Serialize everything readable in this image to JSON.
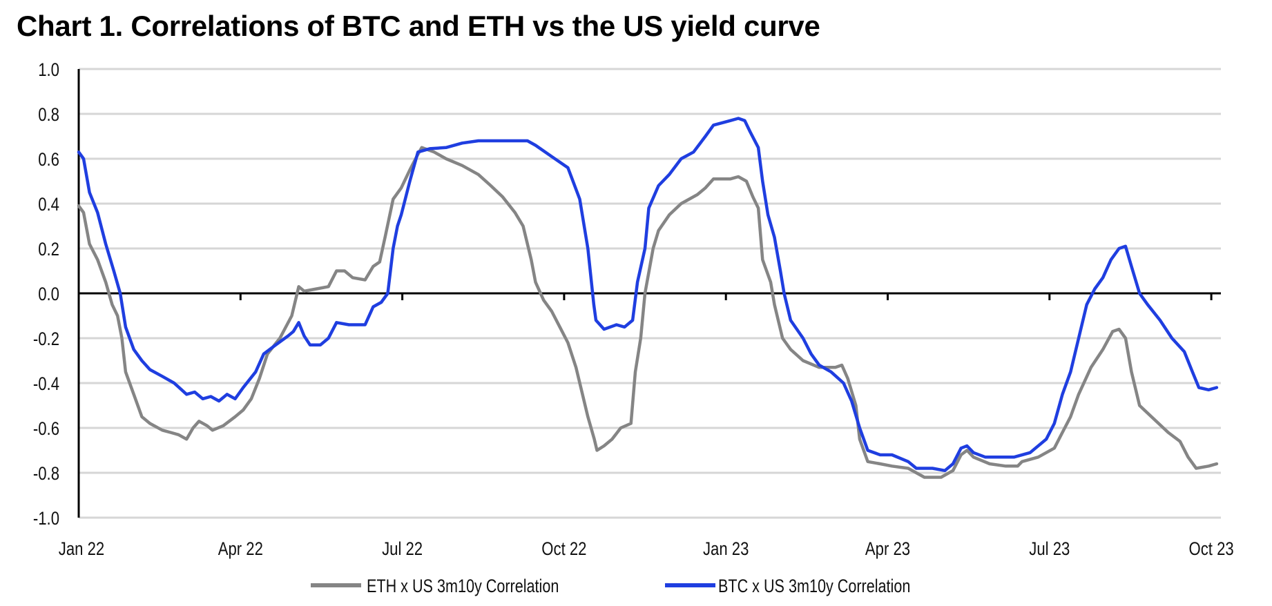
{
  "chart_data": {
    "type": "line",
    "title": "Chart 1. Correlations of BTC and ETH vs the US yield curve",
    "xlabel": "",
    "ylabel": "",
    "x_units": "months since Jan 2022",
    "xlim": [
      0,
      21.17
    ],
    "ylim": [
      -1.0,
      1.0
    ],
    "grid": true,
    "legend_position": "bottom",
    "y_ticks": [
      "1.0",
      "0.8",
      "0.6",
      "0.4",
      "0.2",
      "0.0",
      "-0.2",
      "-0.4",
      "-0.6",
      "-0.8",
      "-1.0"
    ],
    "y_tick_values": [
      1.0,
      0.8,
      0.6,
      0.4,
      0.2,
      0.0,
      -0.2,
      -0.4,
      -0.6,
      -0.8,
      -1.0
    ],
    "x_ticks": [
      "Jan 22",
      "Apr 22",
      "Jul 22",
      "Oct 22",
      "Jan 23",
      "Apr 23",
      "Jul 23",
      "Oct 23"
    ],
    "x_tick_values": [
      0,
      3,
      6,
      9,
      12,
      15,
      18,
      21
    ],
    "series": [
      {
        "name": "ETH x US 3m10y Correlation",
        "color": "#858585",
        "points": [
          [
            0,
            0.39
          ],
          [
            0.09,
            0.36
          ],
          [
            0.2,
            0.22
          ],
          [
            0.35,
            0.15
          ],
          [
            0.5,
            0.05
          ],
          [
            0.62,
            -0.05
          ],
          [
            0.72,
            -0.1
          ],
          [
            0.8,
            -0.2
          ],
          [
            0.87,
            -0.35
          ],
          [
            1.02,
            -0.45
          ],
          [
            1.17,
            -0.55
          ],
          [
            1.32,
            -0.58
          ],
          [
            1.55,
            -0.61
          ],
          [
            1.7,
            -0.62
          ],
          [
            1.85,
            -0.63
          ],
          [
            2.0,
            -0.65
          ],
          [
            2.12,
            -0.6
          ],
          [
            2.23,
            -0.57
          ],
          [
            2.38,
            -0.59
          ],
          [
            2.48,
            -0.61
          ],
          [
            2.68,
            -0.59
          ],
          [
            2.9,
            -0.55
          ],
          [
            3.05,
            -0.52
          ],
          [
            3.2,
            -0.47
          ],
          [
            3.35,
            -0.38
          ],
          [
            3.5,
            -0.27
          ],
          [
            3.73,
            -0.2
          ],
          [
            3.95,
            -0.1
          ],
          [
            4.08,
            0.03
          ],
          [
            4.18,
            0.01
          ],
          [
            4.41,
            0.02
          ],
          [
            4.63,
            0.03
          ],
          [
            4.78,
            0.1
          ],
          [
            4.93,
            0.1
          ],
          [
            5.08,
            0.07
          ],
          [
            5.31,
            0.06
          ],
          [
            5.46,
            0.12
          ],
          [
            5.58,
            0.14
          ],
          [
            5.68,
            0.25
          ],
          [
            5.83,
            0.42
          ],
          [
            5.98,
            0.47
          ],
          [
            6.14,
            0.55
          ],
          [
            6.29,
            0.62
          ],
          [
            6.36,
            0.65
          ],
          [
            6.59,
            0.63
          ],
          [
            6.81,
            0.6
          ],
          [
            7.11,
            0.57
          ],
          [
            7.41,
            0.53
          ],
          [
            7.64,
            0.48
          ],
          [
            7.86,
            0.43
          ],
          [
            8.09,
            0.36
          ],
          [
            8.24,
            0.3
          ],
          [
            8.39,
            0.15
          ],
          [
            8.47,
            0.05
          ],
          [
            8.62,
            -0.03
          ],
          [
            8.77,
            -0.08
          ],
          [
            8.92,
            -0.15
          ],
          [
            9.07,
            -0.22
          ],
          [
            9.22,
            -0.33
          ],
          [
            9.34,
            -0.45
          ],
          [
            9.44,
            -0.55
          ],
          [
            9.56,
            -0.65
          ],
          [
            9.61,
            -0.7
          ],
          [
            9.74,
            -0.68
          ],
          [
            9.89,
            -0.65
          ],
          [
            10.05,
            -0.6
          ],
          [
            10.24,
            -0.58
          ],
          [
            10.32,
            -0.35
          ],
          [
            10.42,
            -0.2
          ],
          [
            10.5,
            0.0
          ],
          [
            10.65,
            0.2
          ],
          [
            10.75,
            0.28
          ],
          [
            10.95,
            0.35
          ],
          [
            11.17,
            0.4
          ],
          [
            11.32,
            0.42
          ],
          [
            11.47,
            0.44
          ],
          [
            11.62,
            0.47
          ],
          [
            11.77,
            0.51
          ],
          [
            12.08,
            0.51
          ],
          [
            12.23,
            0.52
          ],
          [
            12.38,
            0.5
          ],
          [
            12.5,
            0.43
          ],
          [
            12.6,
            0.38
          ],
          [
            12.68,
            0.15
          ],
          [
            12.83,
            0.05
          ],
          [
            12.9,
            -0.05
          ],
          [
            13.05,
            -0.2
          ],
          [
            13.2,
            -0.25
          ],
          [
            13.43,
            -0.3
          ],
          [
            13.73,
            -0.33
          ],
          [
            14.03,
            -0.33
          ],
          [
            14.15,
            -0.32
          ],
          [
            14.26,
            -0.38
          ],
          [
            14.41,
            -0.5
          ],
          [
            14.48,
            -0.65
          ],
          [
            14.63,
            -0.75
          ],
          [
            14.86,
            -0.76
          ],
          [
            15.08,
            -0.77
          ],
          [
            15.38,
            -0.78
          ],
          [
            15.53,
            -0.8
          ],
          [
            15.68,
            -0.82
          ],
          [
            15.99,
            -0.82
          ],
          [
            16.21,
            -0.79
          ],
          [
            16.36,
            -0.72
          ],
          [
            16.47,
            -0.7
          ],
          [
            16.59,
            -0.73
          ],
          [
            16.89,
            -0.76
          ],
          [
            17.19,
            -0.77
          ],
          [
            17.41,
            -0.77
          ],
          [
            17.49,
            -0.75
          ],
          [
            17.79,
            -0.73
          ],
          [
            18.09,
            -0.69
          ],
          [
            18.24,
            -0.62
          ],
          [
            18.39,
            -0.55
          ],
          [
            18.54,
            -0.45
          ],
          [
            18.77,
            -0.33
          ],
          [
            18.99,
            -0.25
          ],
          [
            19.17,
            -0.17
          ],
          [
            19.29,
            -0.16
          ],
          [
            19.41,
            -0.2
          ],
          [
            19.52,
            -0.35
          ],
          [
            19.67,
            -0.5
          ],
          [
            19.89,
            -0.55
          ],
          [
            20.2,
            -0.62
          ],
          [
            20.42,
            -0.66
          ],
          [
            20.57,
            -0.73
          ],
          [
            20.72,
            -0.78
          ],
          [
            20.95,
            -0.77
          ],
          [
            21.1,
            -0.76
          ]
        ]
      },
      {
        "name": "BTC x US 3m10y Correlation",
        "color": "#1f3ee0",
        "points": [
          [
            0,
            0.63
          ],
          [
            0.09,
            0.6
          ],
          [
            0.2,
            0.45
          ],
          [
            0.35,
            0.36
          ],
          [
            0.5,
            0.22
          ],
          [
            0.65,
            0.1
          ],
          [
            0.77,
            0.0
          ],
          [
            0.87,
            -0.15
          ],
          [
            1.02,
            -0.25
          ],
          [
            1.17,
            -0.3
          ],
          [
            1.32,
            -0.34
          ],
          [
            1.55,
            -0.37
          ],
          [
            1.77,
            -0.4
          ],
          [
            2.0,
            -0.45
          ],
          [
            2.15,
            -0.44
          ],
          [
            2.3,
            -0.47
          ],
          [
            2.45,
            -0.46
          ],
          [
            2.6,
            -0.48
          ],
          [
            2.75,
            -0.45
          ],
          [
            2.9,
            -0.47
          ],
          [
            3.05,
            -0.42
          ],
          [
            3.28,
            -0.35
          ],
          [
            3.43,
            -0.27
          ],
          [
            3.65,
            -0.23
          ],
          [
            3.88,
            -0.19
          ],
          [
            3.98,
            -0.17
          ],
          [
            4.08,
            -0.13
          ],
          [
            4.18,
            -0.19
          ],
          [
            4.29,
            -0.23
          ],
          [
            4.48,
            -0.23
          ],
          [
            4.63,
            -0.2
          ],
          [
            4.78,
            -0.13
          ],
          [
            5.01,
            -0.14
          ],
          [
            5.31,
            -0.14
          ],
          [
            5.46,
            -0.06
          ],
          [
            5.61,
            -0.04
          ],
          [
            5.73,
            0.0
          ],
          [
            5.83,
            0.2
          ],
          [
            5.91,
            0.3
          ],
          [
            5.98,
            0.35
          ],
          [
            6.14,
            0.5
          ],
          [
            6.29,
            0.63
          ],
          [
            6.51,
            0.645
          ],
          [
            6.81,
            0.65
          ],
          [
            7.11,
            0.67
          ],
          [
            7.41,
            0.68
          ],
          [
            7.71,
            0.68
          ],
          [
            8.32,
            0.68
          ],
          [
            8.47,
            0.66
          ],
          [
            8.77,
            0.61
          ],
          [
            9.07,
            0.56
          ],
          [
            9.29,
            0.42
          ],
          [
            9.44,
            0.2
          ],
          [
            9.55,
            -0.05
          ],
          [
            9.59,
            -0.12
          ],
          [
            9.74,
            -0.16
          ],
          [
            9.97,
            -0.14
          ],
          [
            10.12,
            -0.15
          ],
          [
            10.27,
            -0.12
          ],
          [
            10.36,
            0.05
          ],
          [
            10.5,
            0.2
          ],
          [
            10.57,
            0.38
          ],
          [
            10.75,
            0.48
          ],
          [
            10.95,
            0.53
          ],
          [
            11.17,
            0.6
          ],
          [
            11.4,
            0.63
          ],
          [
            11.62,
            0.7
          ],
          [
            11.77,
            0.75
          ],
          [
            12.08,
            0.77
          ],
          [
            12.23,
            0.78
          ],
          [
            12.35,
            0.77
          ],
          [
            12.45,
            0.72
          ],
          [
            12.6,
            0.65
          ],
          [
            12.68,
            0.5
          ],
          [
            12.78,
            0.35
          ],
          [
            12.9,
            0.25
          ],
          [
            13.01,
            0.1
          ],
          [
            13.08,
            0.0
          ],
          [
            13.2,
            -0.12
          ],
          [
            13.43,
            -0.2
          ],
          [
            13.58,
            -0.27
          ],
          [
            13.73,
            -0.32
          ],
          [
            13.95,
            -0.35
          ],
          [
            14.18,
            -0.4
          ],
          [
            14.33,
            -0.48
          ],
          [
            14.48,
            -0.6
          ],
          [
            14.63,
            -0.7
          ],
          [
            14.86,
            -0.72
          ],
          [
            15.08,
            -0.72
          ],
          [
            15.38,
            -0.75
          ],
          [
            15.53,
            -0.78
          ],
          [
            15.83,
            -0.78
          ],
          [
            16.06,
            -0.79
          ],
          [
            16.21,
            -0.76
          ],
          [
            16.36,
            -0.69
          ],
          [
            16.47,
            -0.68
          ],
          [
            16.59,
            -0.71
          ],
          [
            16.81,
            -0.73
          ],
          [
            17.04,
            -0.73
          ],
          [
            17.34,
            -0.73
          ],
          [
            17.64,
            -0.71
          ],
          [
            17.94,
            -0.65
          ],
          [
            18.09,
            -0.58
          ],
          [
            18.24,
            -0.45
          ],
          [
            18.39,
            -0.35
          ],
          [
            18.54,
            -0.2
          ],
          [
            18.69,
            -0.05
          ],
          [
            18.84,
            0.02
          ],
          [
            18.99,
            0.07
          ],
          [
            19.14,
            0.15
          ],
          [
            19.29,
            0.2
          ],
          [
            19.41,
            0.21
          ],
          [
            19.52,
            0.12
          ],
          [
            19.67,
            0.0
          ],
          [
            19.82,
            -0.05
          ],
          [
            20.05,
            -0.12
          ],
          [
            20.27,
            -0.2
          ],
          [
            20.5,
            -0.26
          ],
          [
            20.65,
            -0.35
          ],
          [
            20.77,
            -0.42
          ],
          [
            20.95,
            -0.43
          ],
          [
            21.1,
            -0.42
          ]
        ]
      }
    ]
  }
}
